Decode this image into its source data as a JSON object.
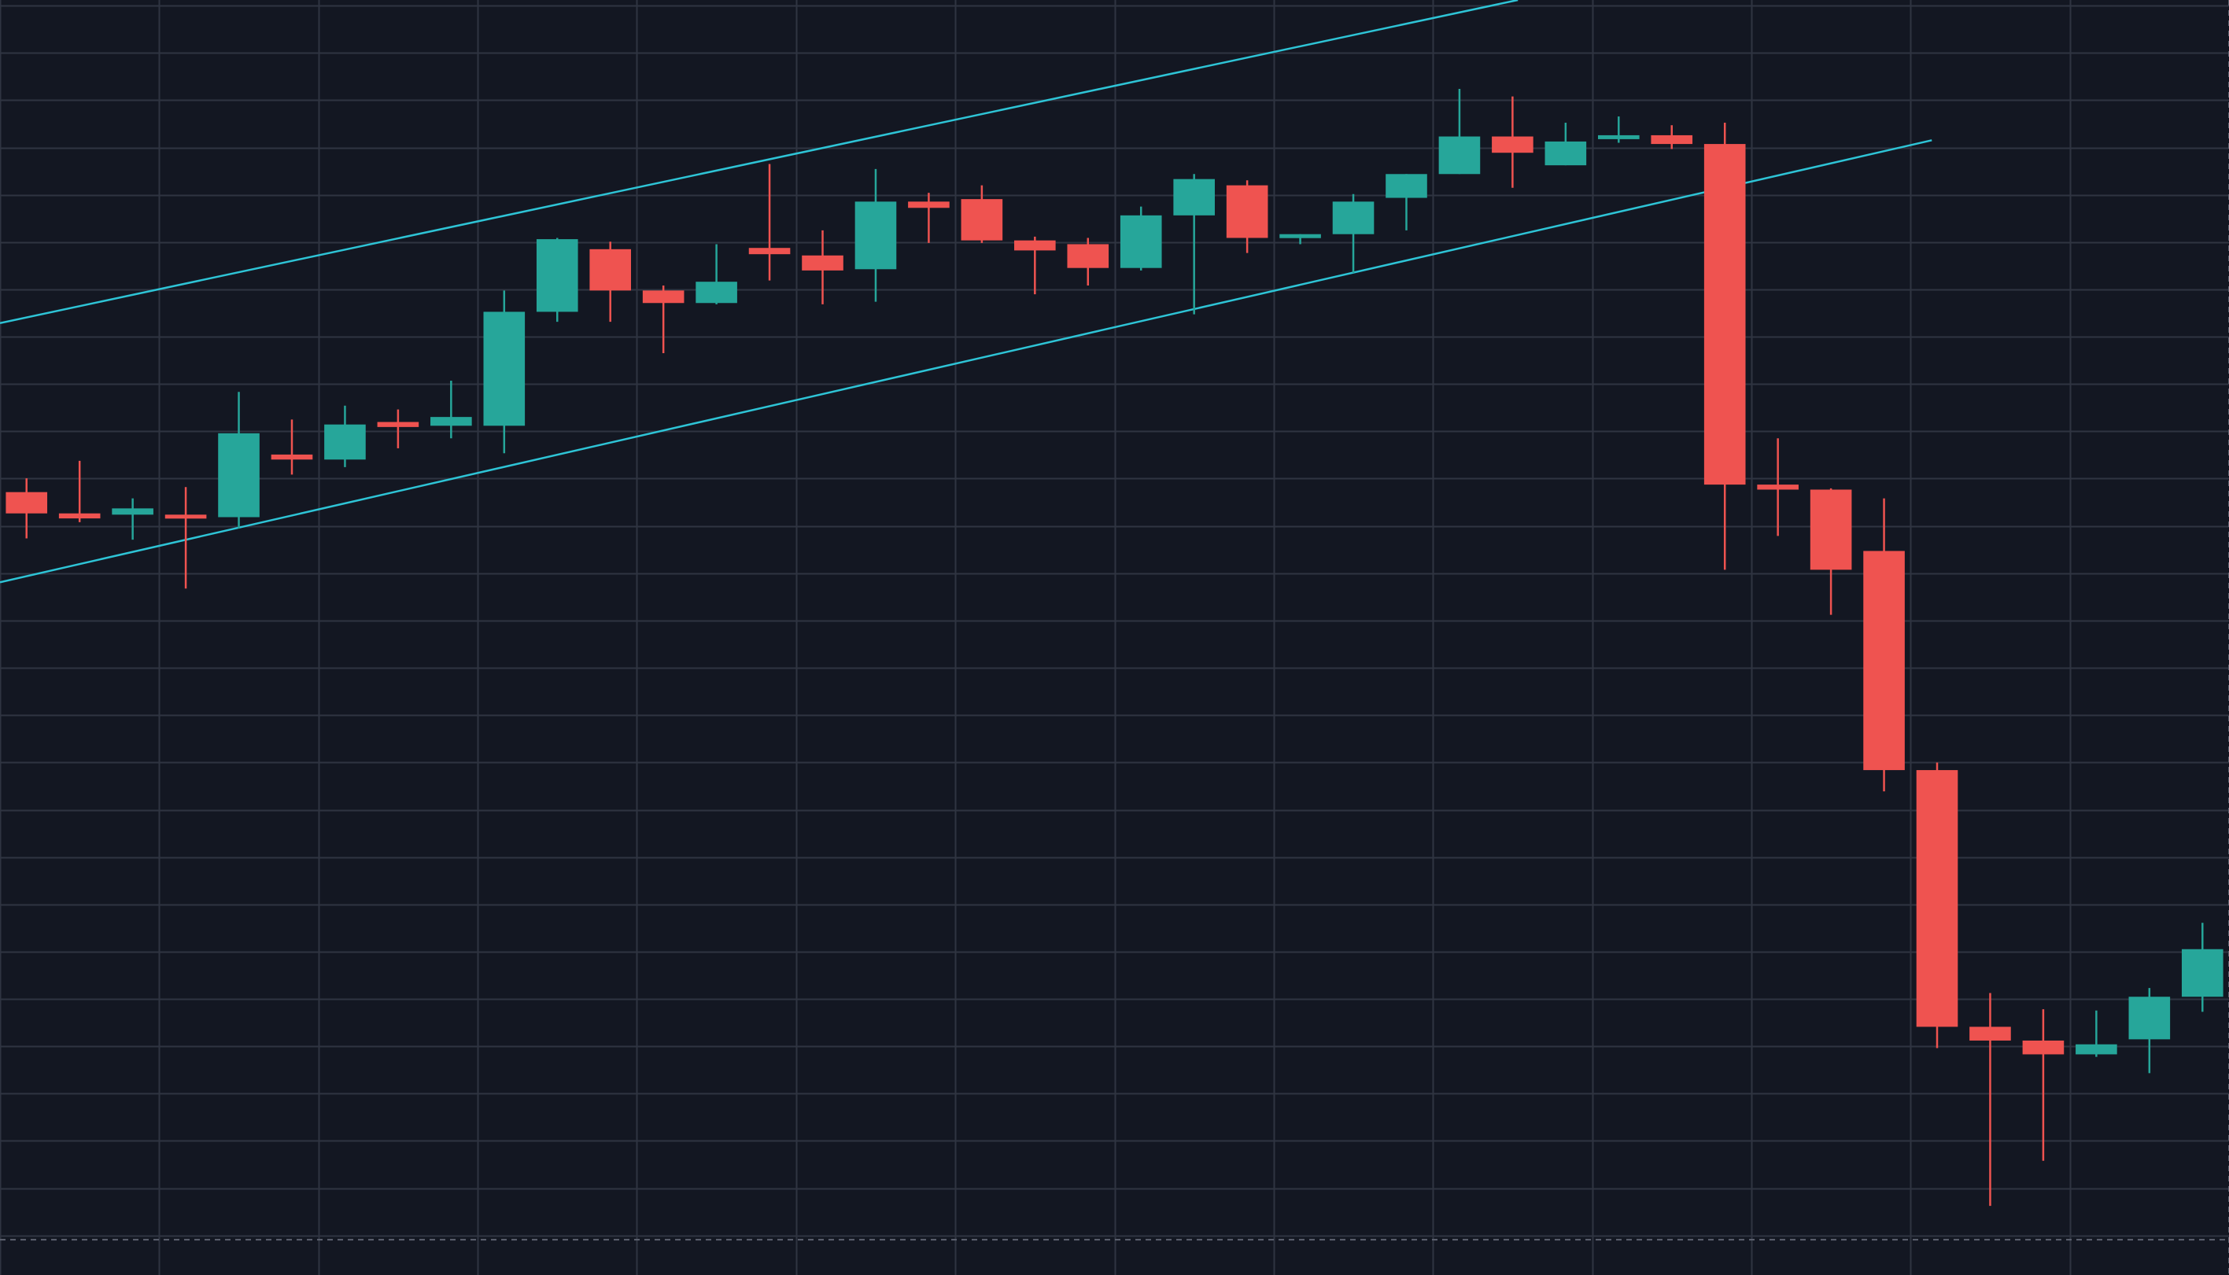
{
  "colors": {
    "background": "#131722",
    "grid": "#2f3441",
    "up": "#26a69a",
    "down": "#ef5350",
    "trendline": "#2ec4d6",
    "crosshair": "#5d6270"
  },
  "chart_data": {
    "type": "candlestick",
    "title": "",
    "xlabel": "",
    "ylabel": "",
    "grid": true,
    "ylim": [
      0,
      100
    ],
    "xlim": [
      -0.5,
      41.5
    ],
    "x_gridlines": [
      -0.5,
      2.5,
      5.5,
      8.5,
      11.5,
      14.5,
      17.5,
      20.5,
      23.5,
      26.5,
      29.5,
      32.5,
      35.5,
      38.5
    ],
    "y_gridlines": [
      1.33,
      5.11,
      8.89,
      12.67,
      16.44,
      20.22,
      24.0,
      27.78,
      31.56,
      35.33,
      39.11,
      42.89,
      46.67,
      50.44,
      54.22,
      58.0,
      61.78,
      65.56,
      69.33,
      73.11,
      76.89,
      80.67,
      84.44,
      88.22,
      92.0,
      95.78,
      99.55
    ],
    "crosshair_x": 41.0,
    "crosshair_y": 1.0,
    "candles": [
      {
        "x": 0,
        "open": 60.7,
        "high": 61.8,
        "low": 57.0,
        "close": 59.0
      },
      {
        "x": 1,
        "open": 59.0,
        "high": 63.2,
        "low": 58.3,
        "close": 58.6
      },
      {
        "x": 2,
        "open": 58.9,
        "high": 60.2,
        "low": 56.9,
        "close": 59.4
      },
      {
        "x": 3,
        "open": 58.9,
        "high": 61.1,
        "low": 53.0,
        "close": 58.7
      },
      {
        "x": 4,
        "open": 58.7,
        "high": 68.7,
        "low": 57.8,
        "close": 65.4
      },
      {
        "x": 5,
        "open": 63.7,
        "high": 66.5,
        "low": 62.1,
        "close": 63.3
      },
      {
        "x": 6,
        "open": 63.3,
        "high": 67.6,
        "low": 62.7,
        "close": 66.1
      },
      {
        "x": 7,
        "open": 66.3,
        "high": 67.3,
        "low": 64.2,
        "close": 65.9
      },
      {
        "x": 8,
        "open": 66.0,
        "high": 69.6,
        "low": 65.0,
        "close": 66.7
      },
      {
        "x": 9,
        "open": 66.0,
        "high": 76.8,
        "low": 63.8,
        "close": 75.1
      },
      {
        "x": 10,
        "open": 75.1,
        "high": 81.0,
        "low": 74.3,
        "close": 80.9
      },
      {
        "x": 11,
        "open": 80.1,
        "high": 80.7,
        "low": 74.3,
        "close": 76.8
      },
      {
        "x": 12,
        "open": 76.8,
        "high": 77.2,
        "low": 71.8,
        "close": 75.8
      },
      {
        "x": 13,
        "open": 75.8,
        "high": 80.5,
        "low": 75.7,
        "close": 77.5
      },
      {
        "x": 14,
        "open": 80.2,
        "high": 86.9,
        "low": 77.6,
        "close": 79.7
      },
      {
        "x": 15,
        "open": 79.6,
        "high": 81.6,
        "low": 75.7,
        "close": 78.4
      },
      {
        "x": 16,
        "open": 78.5,
        "high": 86.5,
        "low": 75.9,
        "close": 83.9
      },
      {
        "x": 17,
        "open": 83.9,
        "high": 84.6,
        "low": 80.6,
        "close": 83.4
      },
      {
        "x": 18,
        "open": 84.1,
        "high": 85.2,
        "low": 80.6,
        "close": 80.8
      },
      {
        "x": 19,
        "open": 80.8,
        "high": 81.1,
        "low": 76.5,
        "close": 80.0
      },
      {
        "x": 20,
        "open": 80.5,
        "high": 81.0,
        "low": 77.2,
        "close": 78.6
      },
      {
        "x": 21,
        "open": 78.6,
        "high": 83.5,
        "low": 78.4,
        "close": 82.8
      },
      {
        "x": 22,
        "open": 82.8,
        "high": 86.1,
        "low": 74.9,
        "close": 85.7
      },
      {
        "x": 23,
        "open": 85.2,
        "high": 85.6,
        "low": 79.8,
        "close": 81.0
      },
      {
        "x": 24,
        "open": 81.0,
        "high": 81.3,
        "low": 80.5,
        "close": 81.3
      },
      {
        "x": 25,
        "open": 81.3,
        "high": 84.5,
        "low": 78.2,
        "close": 83.9
      },
      {
        "x": 26,
        "open": 84.2,
        "high": 86.1,
        "low": 81.6,
        "close": 86.1
      },
      {
        "x": 27,
        "open": 86.1,
        "high": 92.9,
        "low": 86.1,
        "close": 89.1
      },
      {
        "x": 28,
        "open": 89.1,
        "high": 92.3,
        "low": 85.0,
        "close": 87.8
      },
      {
        "x": 29,
        "open": 86.8,
        "high": 90.2,
        "low": 86.8,
        "close": 88.7
      },
      {
        "x": 30,
        "open": 89.0,
        "high": 90.7,
        "low": 88.6,
        "close": 89.2
      },
      {
        "x": 31,
        "open": 89.2,
        "high": 90.0,
        "low": 88.1,
        "close": 88.5
      },
      {
        "x": 32,
        "open": 88.5,
        "high": 90.2,
        "low": 54.5,
        "close": 61.3
      },
      {
        "x": 33,
        "open": 61.3,
        "high": 65.0,
        "low": 57.2,
        "close": 60.9
      },
      {
        "x": 34,
        "open": 60.9,
        "high": 61.0,
        "low": 50.9,
        "close": 54.5
      },
      {
        "x": 35,
        "open": 56.0,
        "high": 60.2,
        "low": 36.8,
        "close": 38.5
      },
      {
        "x": 36,
        "open": 38.5,
        "high": 39.1,
        "low": 16.3,
        "close": 18.0
      },
      {
        "x": 37,
        "open": 18.0,
        "high": 20.7,
        "low": 3.7,
        "close": 16.9
      },
      {
        "x": 38,
        "open": 16.9,
        "high": 19.4,
        "low": 7.3,
        "close": 15.8
      },
      {
        "x": 39,
        "open": 15.8,
        "high": 19.3,
        "low": 15.6,
        "close": 16.6
      },
      {
        "x": 40,
        "open": 17.0,
        "high": 21.1,
        "low": 14.3,
        "close": 20.4
      },
      {
        "x": 41,
        "open": 20.4,
        "high": 26.3,
        "low": 19.2,
        "close": 24.2
      }
    ],
    "trendlines": [
      {
        "name": "",
        "x1": -0.5,
        "y1": 74.2,
        "x2": 28.1,
        "y2": 100.0
      },
      {
        "name": "",
        "x1": -0.5,
        "y1": 53.5,
        "x2": 35.9,
        "y2": 88.8
      }
    ]
  }
}
